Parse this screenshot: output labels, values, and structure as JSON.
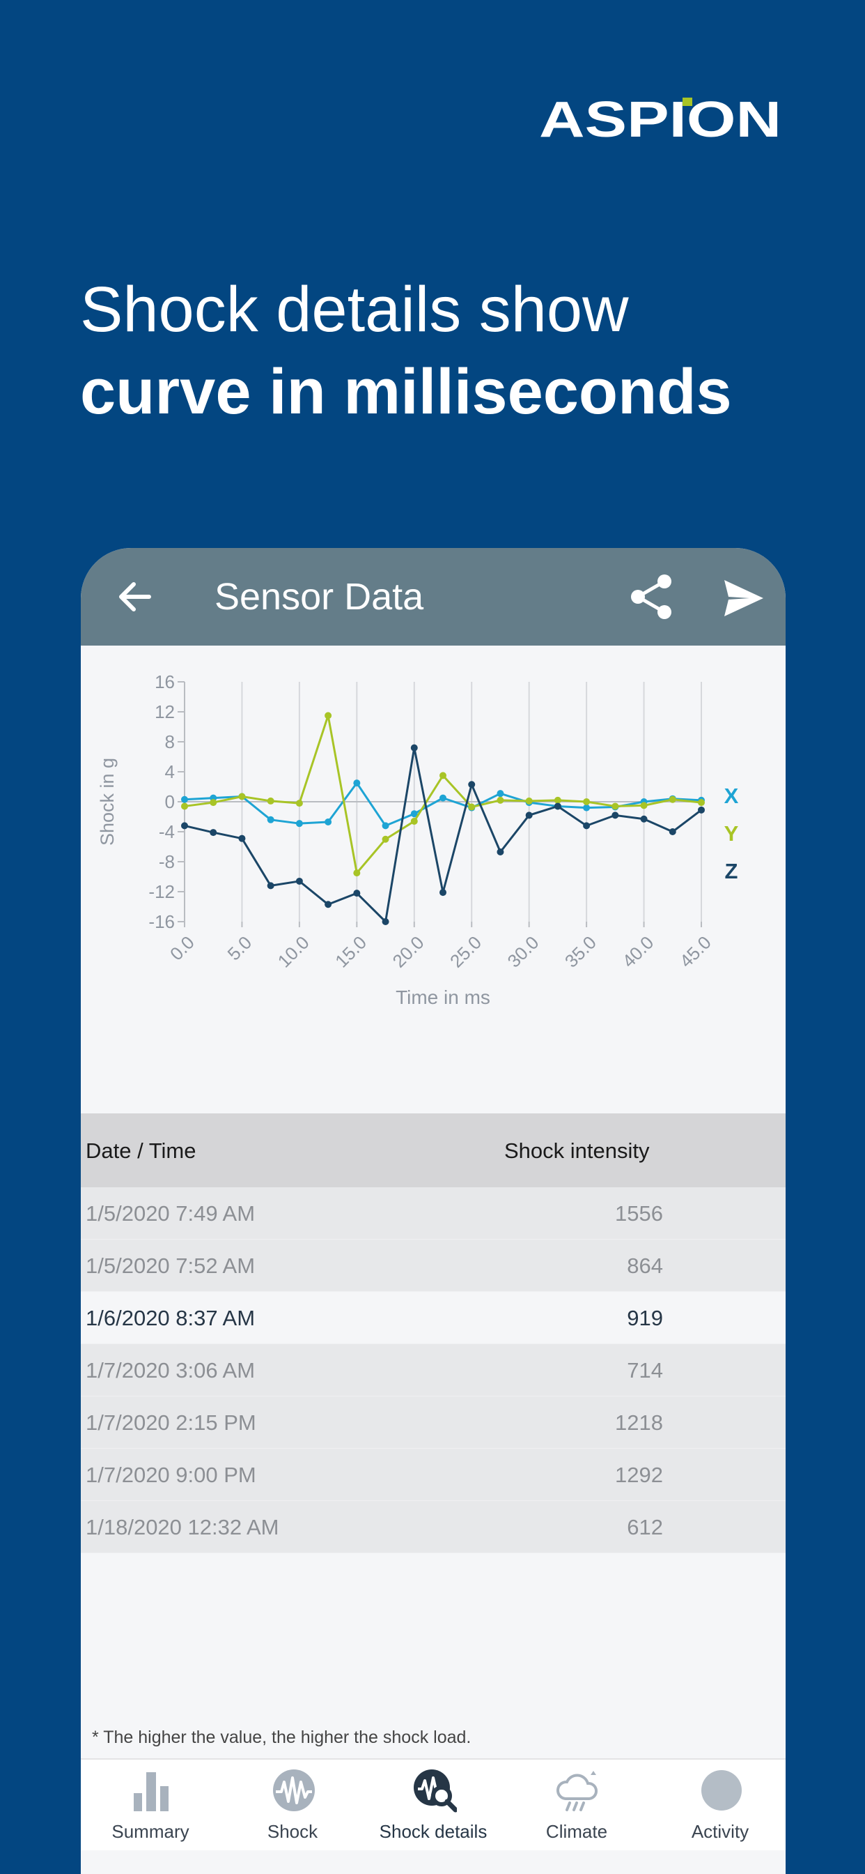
{
  "brand": {
    "logo_text": "ASPiON"
  },
  "headline": {
    "line1": "Shock details show",
    "line2": "curve in milliseconds"
  },
  "appbar": {
    "title": "Sensor Data",
    "back_icon": "arrow-left-icon",
    "share_icon": "share-icon",
    "send_icon": "send-icon"
  },
  "colors": {
    "background": "#034681",
    "appbar": "#647d89",
    "x": "#1ea4d4",
    "y": "#a8c426",
    "z": "#1b4667"
  },
  "chart_data": {
    "type": "line",
    "xlabel": "Time in ms",
    "ylabel": "Shock in g",
    "x_ticks": [
      "0.0",
      "5.0",
      "10.0",
      "15.0",
      "20.0",
      "25.0",
      "30.0",
      "35.0",
      "40.0",
      "45.0"
    ],
    "y_ticks": [
      "16",
      "12",
      "8",
      "4",
      "0",
      "-4",
      "-8",
      "-12",
      "-16"
    ],
    "xlim": [
      0,
      45
    ],
    "ylim": [
      -16,
      16
    ],
    "grid": "vertical",
    "legend": "right",
    "x": [
      0,
      2.5,
      5,
      7.5,
      10,
      12.5,
      15,
      17.5,
      20,
      22.5,
      25,
      27.5,
      30,
      32.5,
      35,
      37.5,
      40,
      42.5,
      45
    ],
    "series": [
      {
        "name": "X",
        "color": "#1ea4d4",
        "values": [
          0.3,
          0.5,
          0.7,
          -2.4,
          -2.9,
          -2.7,
          2.5,
          -3.2,
          -1.6,
          0.5,
          -0.8,
          1.1,
          -0.1,
          -0.6,
          -0.8,
          -0.7,
          0,
          0.4,
          0.2
        ]
      },
      {
        "name": "Y",
        "color": "#a8c426",
        "values": [
          -0.6,
          -0.1,
          0.7,
          0.1,
          -0.2,
          11.5,
          -9.5,
          -5,
          -2.6,
          3.5,
          -0.7,
          0.2,
          0.1,
          0.2,
          0,
          -0.6,
          -0.5,
          0.3,
          -0.1
        ]
      },
      {
        "name": "Z",
        "color": "#1b4667",
        "values": [
          -3.2,
          -4.1,
          -4.9,
          -11.2,
          -10.6,
          -13.7,
          -12.2,
          -16,
          7.2,
          -12.1,
          2.3,
          -6.7,
          -1.8,
          -0.6,
          -3.2,
          -1.8,
          -2.3,
          -4,
          -1.1
        ]
      }
    ]
  },
  "table": {
    "headers": {
      "date": "Date / Time",
      "intensity": "Shock intensity"
    },
    "rows": [
      {
        "date": "1/5/2020 7:49 AM",
        "value": "1556",
        "active": false
      },
      {
        "date": "1/5/2020 7:52 AM",
        "value": "864",
        "active": false
      },
      {
        "date": "1/6/2020 8:37 AM",
        "value": "919",
        "active": true
      },
      {
        "date": "1/7/2020 3:06 AM",
        "value": "714",
        "active": false
      },
      {
        "date": "1/7/2020 2:15 PM",
        "value": "1218",
        "active": false
      },
      {
        "date": "1/7/2020 9:00 PM",
        "value": "1292",
        "active": false
      },
      {
        "date": "1/18/2020 12:32 AM",
        "value": "612",
        "active": false
      }
    ]
  },
  "footnote": "* The higher the value, the higher the shock load.",
  "tabs": [
    {
      "label": "Summary",
      "icon": "bar-chart-icon",
      "active": false
    },
    {
      "label": "Shock",
      "icon": "shock-wave-icon",
      "active": false
    },
    {
      "label": "Shock details",
      "icon": "shock-search-icon",
      "active": true
    },
    {
      "label": "Climate",
      "icon": "cloud-rain-icon",
      "active": false
    },
    {
      "label": "Activity",
      "icon": "activity-circle-icon",
      "active": false
    }
  ]
}
